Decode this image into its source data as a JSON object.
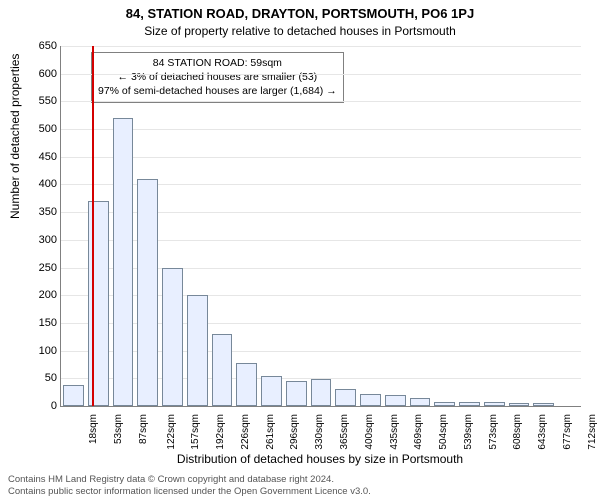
{
  "title_line1": "84, STATION ROAD, DRAYTON, PORTSMOUTH, PO6 1PJ",
  "title_line2": "Size of property relative to detached houses in Portsmouth",
  "y_axis_label": "Number of detached properties",
  "x_axis_label": "Distribution of detached houses by size in Portsmouth",
  "info_box": {
    "line1": "84 STATION ROAD: 59sqm",
    "line2": "← 3% of detached houses are smaller (53)",
    "line3": "97% of semi-detached houses are larger (1,684) →"
  },
  "footer_line1": "Contains HM Land Registry data © Crown copyright and database right 2024.",
  "footer_line2": "Contains public sector information licensed under the Open Government Licence v3.0.",
  "chart": {
    "type": "histogram",
    "background_color": "#ffffff",
    "grid_color": "#e6e6e6",
    "axis_color": "#808080",
    "bar_fill": "#e8efff",
    "bar_border": "#778899",
    "marker_color": "#d40000",
    "marker_x": 59,
    "title_fontsize_bold": 13,
    "title_fontsize": 12,
    "axis_label_fontsize": 12,
    "tick_fontsize": 11,
    "xtick_fontsize": 10,
    "ylim": [
      0,
      650
    ],
    "ytick_step": 50,
    "x_range": [
      18,
      712
    ],
    "x_ticks": [
      18,
      53,
      87,
      122,
      157,
      192,
      226,
      261,
      296,
      330,
      365,
      400,
      435,
      469,
      504,
      539,
      573,
      608,
      643,
      677,
      712
    ],
    "x_tick_suffix": "sqm",
    "values": [
      38,
      370,
      520,
      410,
      250,
      200,
      130,
      78,
      55,
      45,
      48,
      30,
      22,
      20,
      15,
      8,
      8,
      8,
      5,
      5,
      0
    ]
  }
}
